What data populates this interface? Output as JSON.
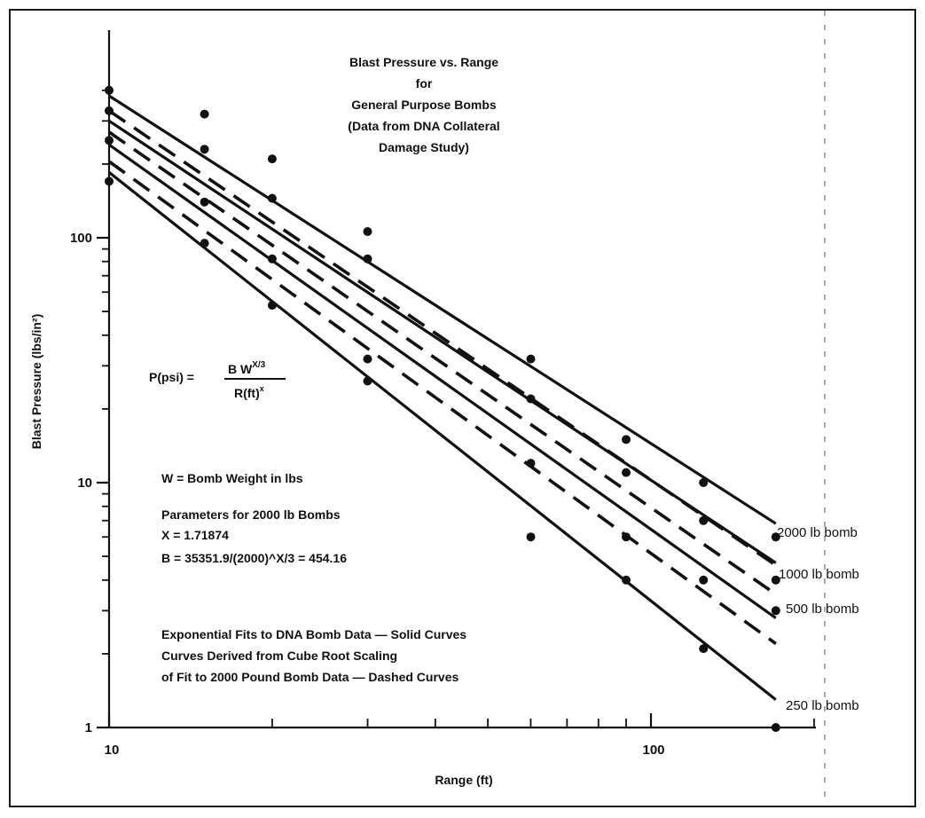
{
  "chart_data": {
    "type": "line",
    "title_lines": [
      "Blast Pressure vs. Range",
      "for",
      "General Purpose Bombs",
      "(Data from DNA Collateral",
      "Damage Study)"
    ],
    "xlabel": "Range (ft)",
    "ylabel": "Blast Pressure (lbs/in²)",
    "xscale": "log",
    "yscale": "log",
    "xlim": [
      10,
      170
    ],
    "ylim": [
      1,
      400
    ],
    "x_tick_labels": [
      {
        "value": 10,
        "label": "10"
      },
      {
        "value": 100,
        "label": "100"
      }
    ],
    "y_tick_labels": [
      {
        "value": 1,
        "label": "1"
      },
      {
        "value": 10,
        "label": "10"
      },
      {
        "value": 100,
        "label": "100"
      }
    ],
    "formula": {
      "lhs": "P(psi) =",
      "numerator": "B W",
      "numerator_sup": "X/3",
      "denominator": "R(ft)",
      "denominator_sup": "x"
    },
    "annotations": [
      "W = Bomb Weight in lbs",
      "Parameters for 2000 lb Bombs",
      "X = 1.71874",
      "B = 35351.9/(2000)^X/3 = 454.16",
      "Exponential Fits to DNA Bomb Data — Solid Curves",
      "Curves Derived from Cube Root Scaling",
      "of Fit to 2000 Pound Bomb Data — Dashed Curves"
    ],
    "series": [
      {
        "name": "2000 lb bomb",
        "fit": "solid",
        "line": [
          [
            10,
            380
          ],
          [
            170,
            6.8
          ]
        ],
        "points": [
          [
            10,
            400
          ],
          [
            15,
            320
          ],
          [
            20,
            210
          ],
          [
            30,
            106
          ],
          [
            60,
            32
          ],
          [
            90,
            15
          ],
          [
            125,
            10
          ],
          [
            170,
            6.0
          ]
        ]
      },
      {
        "name": "1000 lb bomb",
        "fit": "solid",
        "line": [
          [
            10,
            300
          ],
          [
            170,
            4.7
          ]
        ],
        "points": [
          [
            10,
            330
          ],
          [
            15,
            230
          ],
          [
            20,
            145
          ],
          [
            30,
            82
          ],
          [
            60,
            22
          ],
          [
            90,
            11
          ],
          [
            125,
            7
          ],
          [
            170,
            4.0
          ]
        ]
      },
      {
        "name": "500 lb bomb",
        "fit": "solid",
        "line": [
          [
            10,
            240
          ],
          [
            170,
            2.8
          ]
        ],
        "points": [
          [
            10,
            250
          ],
          [
            15,
            140
          ],
          [
            20,
            82
          ],
          [
            30,
            32
          ],
          [
            60,
            12
          ],
          [
            90,
            6
          ],
          [
            125,
            4
          ],
          [
            170,
            3.0
          ]
        ]
      },
      {
        "name": "250 lb bomb",
        "fit": "solid",
        "line": [
          [
            10,
            185
          ],
          [
            170,
            1.3
          ]
        ],
        "points": [
          [
            10,
            170
          ],
          [
            15,
            95
          ],
          [
            20,
            53
          ],
          [
            30,
            26
          ],
          [
            60,
            6
          ],
          [
            90,
            4
          ],
          [
            125,
            2.1
          ],
          [
            170,
            1.0
          ]
        ]
      },
      {
        "name": "",
        "fit": "dashed",
        "line": [
          [
            10,
            330
          ],
          [
            170,
            4.6
          ]
        ],
        "points": []
      },
      {
        "name": "",
        "fit": "dashed",
        "line": [
          [
            10,
            270
          ],
          [
            170,
            3.5
          ]
        ],
        "points": []
      },
      {
        "name": "",
        "fit": "dashed",
        "line": [
          [
            10,
            205
          ],
          [
            170,
            2.2
          ]
        ],
        "points": []
      }
    ]
  }
}
